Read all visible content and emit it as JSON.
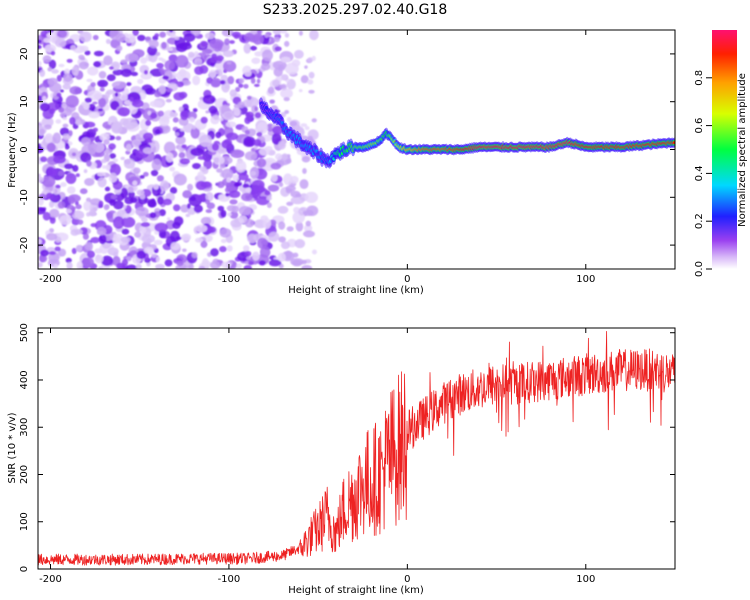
{
  "title": "S233.2025.297.02.40.G18",
  "chart_data": [
    {
      "type": "heatmap",
      "xlabel": "Height of straight line (km)",
      "ylabel": "Frequency (Hz)",
      "xlim": [
        -207,
        150
      ],
      "ylim": [
        -25,
        25
      ],
      "xticks": [
        -200,
        -100,
        0,
        100
      ],
      "yticks": [
        -20,
        -10,
        0,
        10,
        20
      ],
      "colorbar": {
        "label": "Normalized spectral amplitude",
        "range": [
          0,
          1
        ],
        "ticks": [
          0.0,
          0.2,
          0.4,
          0.6,
          0.8
        ]
      },
      "ridge": {
        "x": [
          -82,
          -75,
          -65,
          -55,
          -50,
          -45,
          -40,
          -35,
          -30,
          -25,
          -20,
          -15,
          -12,
          -8,
          -5,
          0,
          5,
          10,
          20,
          30,
          40,
          60,
          80,
          90,
          100,
          120,
          150
        ],
        "y": [
          9,
          7,
          3,
          0,
          -1,
          -2.5,
          -1,
          0,
          0.5,
          0.5,
          1,
          2,
          3.5,
          2,
          0.5,
          0,
          0,
          0,
          0,
          0,
          0.5,
          0.5,
          0.5,
          1.5,
          0.5,
          0.5,
          1.5
        ],
        "amp": [
          0.2,
          0.25,
          0.3,
          0.3,
          0.3,
          0.25,
          0.45,
          0.5,
          0.55,
          0.55,
          0.6,
          0.55,
          0.5,
          0.6,
          0.65,
          0.75,
          0.8,
          0.85,
          0.85,
          0.9,
          0.95,
          0.95,
          0.95,
          0.95,
          0.9,
          0.9,
          0.9
        ]
      }
    },
    {
      "type": "line",
      "xlabel": "Height of straight line (km)",
      "ylabel": "SNR (10 * v/v)",
      "xlim": [
        -207,
        150
      ],
      "ylim": [
        0,
        510
      ],
      "xticks": [
        -200,
        -100,
        0,
        100
      ],
      "yticks": [
        0,
        100,
        200,
        300,
        400,
        500
      ],
      "color": "#ee2222",
      "series": [
        {
          "name": "SNR",
          "x": [
            -207,
            -180,
            -150,
            -120,
            -90,
            -80,
            -70,
            -60,
            -55,
            -50,
            -45,
            -40,
            -35,
            -30,
            -25,
            -20,
            -15,
            -10,
            -5,
            0,
            10,
            20,
            30,
            40,
            50,
            60,
            80,
            100,
            120,
            140,
            150
          ],
          "y": [
            20,
            20,
            20,
            22,
            22,
            25,
            28,
            45,
            70,
            90,
            120,
            80,
            140,
            160,
            190,
            200,
            210,
            250,
            270,
            300,
            330,
            360,
            380,
            390,
            400,
            400,
            410,
            420,
            430,
            430,
            420
          ]
        }
      ]
    }
  ]
}
